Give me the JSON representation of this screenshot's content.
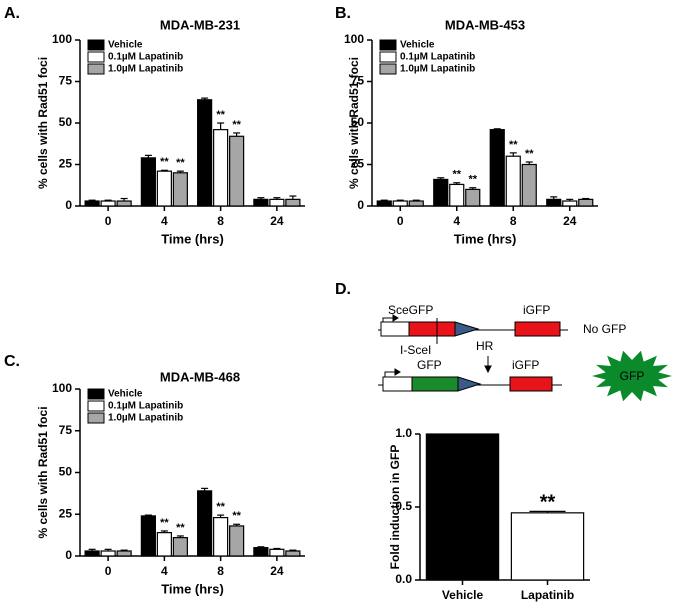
{
  "chart_data": [
    {
      "type": "grouped-bar",
      "panel": "A.",
      "title": "MDA-MB-231",
      "y_label": "% cells with Rad51 foci",
      "x_label": "Time (hrs)",
      "categories": [
        "0",
        "4",
        "8",
        "24"
      ],
      "ylim": [
        0,
        100
      ],
      "yticks": [
        0,
        25,
        50,
        75,
        100
      ],
      "series": [
        {
          "name": "Vehicle",
          "color": "#000000",
          "values": [
            3,
            29,
            64,
            4
          ],
          "errors": [
            0.5,
            1.5,
            1,
            1
          ],
          "labels": [
            null,
            null,
            null,
            null
          ]
        },
        {
          "name": "0.1µM Lapatinib",
          "color": "#ffffff",
          "values": [
            3,
            21,
            46,
            4
          ],
          "errors": [
            0.5,
            0.5,
            4,
            1
          ],
          "labels": [
            null,
            "**",
            "**",
            null
          ]
        },
        {
          "name": "1.0µM Lapatinib",
          "color": "#a6a6a6",
          "values": [
            3,
            20,
            42,
            4
          ],
          "errors": [
            1.5,
            1,
            2,
            2
          ],
          "labels": [
            null,
            "**",
            "**",
            null
          ]
        }
      ]
    },
    {
      "type": "grouped-bar",
      "panel": "B.",
      "title": "MDA-MB-453",
      "y_label": "% cells with Rad51 foci",
      "x_label": "Time (hrs)",
      "categories": [
        "0",
        "4",
        "8",
        "24"
      ],
      "ylim": [
        0,
        100
      ],
      "yticks": [
        0,
        25,
        50,
        75,
        100
      ],
      "series": [
        {
          "name": "Vehicle",
          "color": "#000000",
          "values": [
            3,
            16,
            46,
            4
          ],
          "errors": [
            0.5,
            1,
            0.5,
            1.5
          ],
          "labels": [
            null,
            null,
            null,
            null
          ]
        },
        {
          "name": "0.1µM Lapatinib",
          "color": "#ffffff",
          "values": [
            3,
            13,
            30,
            3
          ],
          "errors": [
            0.5,
            1,
            2,
            1
          ],
          "labels": [
            null,
            "**",
            "**",
            null
          ]
        },
        {
          "name": "1.0µM Lapatinib",
          "color": "#a6a6a6",
          "values": [
            3,
            10,
            25,
            4
          ],
          "errors": [
            0.5,
            1,
            1.5,
            0.5
          ],
          "labels": [
            null,
            "**",
            "**",
            null
          ]
        }
      ]
    },
    {
      "type": "grouped-bar",
      "panel": "C.",
      "title": "MDA-MB-468",
      "y_label": "% cells with Rad51 foci",
      "x_label": "Time (hrs)",
      "categories": [
        "0",
        "4",
        "8",
        "24"
      ],
      "ylim": [
        0,
        100
      ],
      "yticks": [
        0,
        25,
        50,
        75,
        100
      ],
      "series": [
        {
          "name": "Vehicle",
          "color": "#000000",
          "values": [
            3,
            24,
            39,
            5
          ],
          "errors": [
            1,
            0.5,
            1.5,
            0.5
          ],
          "labels": [
            null,
            null,
            null,
            null
          ]
        },
        {
          "name": "0.1µM Lapatinib",
          "color": "#ffffff",
          "values": [
            3,
            14,
            23,
            4
          ],
          "errors": [
            1,
            1,
            1.5,
            0.5
          ],
          "labels": [
            null,
            "**",
            "**",
            null
          ]
        },
        {
          "name": "1.0µM Lapatinib",
          "color": "#a6a6a6",
          "values": [
            3,
            11,
            18,
            3
          ],
          "errors": [
            0.5,
            1,
            1,
            0.5
          ],
          "labels": [
            null,
            "**",
            "**",
            null
          ]
        }
      ]
    },
    {
      "type": "bar",
      "panel": "D.",
      "y_label": "Fold induction in GFP",
      "categories": [
        "Vehicle",
        "Lapatinib"
      ],
      "values": [
        1.0,
        0.46
      ],
      "errors": [
        null,
        0.01
      ],
      "colors": [
        "#000000",
        "#ffffff"
      ],
      "labels": [
        null,
        "**"
      ],
      "ylim": [
        0,
        1.0
      ],
      "yticks": [
        {
          "value": 0,
          "label": "0.0"
        },
        {
          "value": 0.5,
          "label": "0.5"
        },
        {
          "value": 1.0,
          "label": "1.0"
        }
      ]
    }
  ],
  "diagram": {
    "top": {
      "left_label": "SceGFP",
      "right_label": "iGFP",
      "site": "I-SceI",
      "result": "No GFP"
    },
    "arrow": "HR",
    "bottom": {
      "left_label": "GFP",
      "right_label": "iGFP",
      "result": "GFP"
    }
  }
}
